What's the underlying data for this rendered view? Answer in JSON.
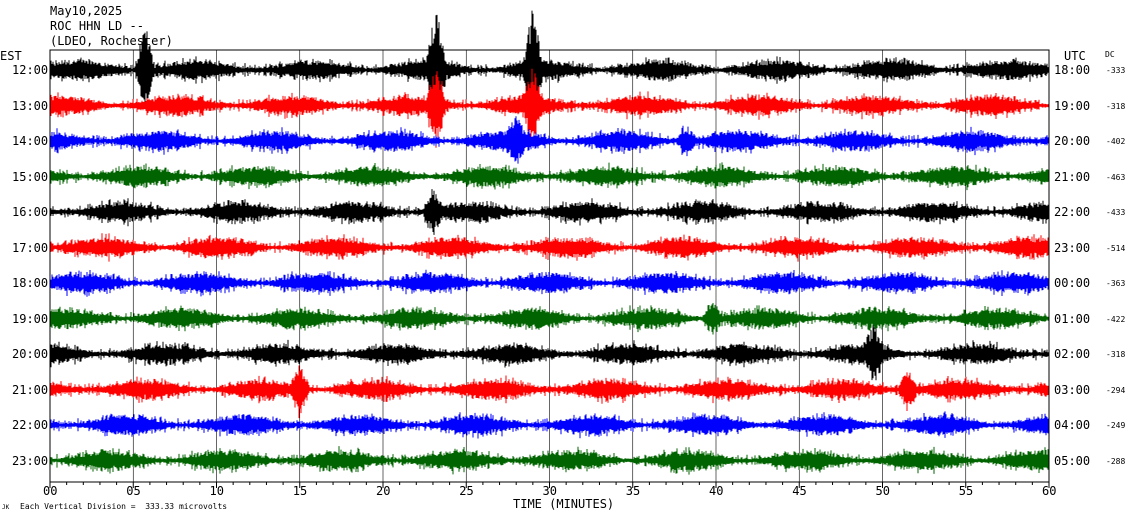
{
  "header": {
    "date": "May10,2025",
    "station": "ROC HHN LD --",
    "network": "(LDEO, Rochester)"
  },
  "left_zone_label": "EST",
  "right_zone_label": "UTC",
  "dc_label": "DC",
  "footer": {
    "scale_note": "Each Vertical Division =  333.33 microvolts",
    "mark": "JK"
  },
  "chart_data": {
    "type": "line",
    "title": "",
    "xlabel": "TIME (MINUTES)",
    "xlim": [
      0,
      60
    ],
    "x_ticks": [
      "00",
      "05",
      "10",
      "15",
      "20",
      "25",
      "30",
      "35",
      "40",
      "45",
      "50",
      "55",
      "60"
    ],
    "rows": [
      {
        "est": "12:00",
        "utc": "18:00",
        "dc": "-333",
        "color": "#000000"
      },
      {
        "est": "13:00",
        "utc": "19:00",
        "dc": "-318",
        "color": "#ff0000"
      },
      {
        "est": "14:00",
        "utc": "20:00",
        "dc": "-402",
        "color": "#0000ff"
      },
      {
        "est": "15:00",
        "utc": "21:00",
        "dc": "-463",
        "color": "#006400"
      },
      {
        "est": "16:00",
        "utc": "22:00",
        "dc": "-433",
        "color": "#000000"
      },
      {
        "est": "17:00",
        "utc": "23:00",
        "dc": "-514",
        "color": "#ff0000"
      },
      {
        "est": "18:00",
        "utc": "00:00",
        "dc": "-363",
        "color": "#0000ff"
      },
      {
        "est": "19:00",
        "utc": "01:00",
        "dc": "-422",
        "color": "#006400"
      },
      {
        "est": "20:00",
        "utc": "02:00",
        "dc": "-318",
        "color": "#000000"
      },
      {
        "est": "21:00",
        "utc": "03:00",
        "dc": "-294",
        "color": "#ff0000"
      },
      {
        "est": "22:00",
        "utc": "04:00",
        "dc": "-249",
        "color": "#0000ff"
      },
      {
        "est": "23:00",
        "utc": "05:00",
        "dc": "-288",
        "color": "#006400"
      }
    ],
    "events": [
      {
        "row": 0,
        "minute": 23.2,
        "amplitude": 60
      },
      {
        "row": 0,
        "minute": 29.0,
        "amplitude": 55
      },
      {
        "row": 0,
        "minute": 5.7,
        "amplitude": 45
      },
      {
        "row": 1,
        "minute": 23.2,
        "amplitude": 35
      },
      {
        "row": 1,
        "minute": 29.0,
        "amplitude": 30
      },
      {
        "row": 2,
        "minute": 28.0,
        "amplitude": 18
      },
      {
        "row": 2,
        "minute": 38.2,
        "amplitude": 14
      },
      {
        "row": 4,
        "minute": 23.0,
        "amplitude": 20
      },
      {
        "row": 7,
        "minute": 39.8,
        "amplitude": 15
      },
      {
        "row": 8,
        "minute": 49.5,
        "amplitude": 22
      },
      {
        "row": 9,
        "minute": 15.0,
        "amplitude": 25
      },
      {
        "row": 9,
        "minute": 51.5,
        "amplitude": 20
      }
    ]
  }
}
